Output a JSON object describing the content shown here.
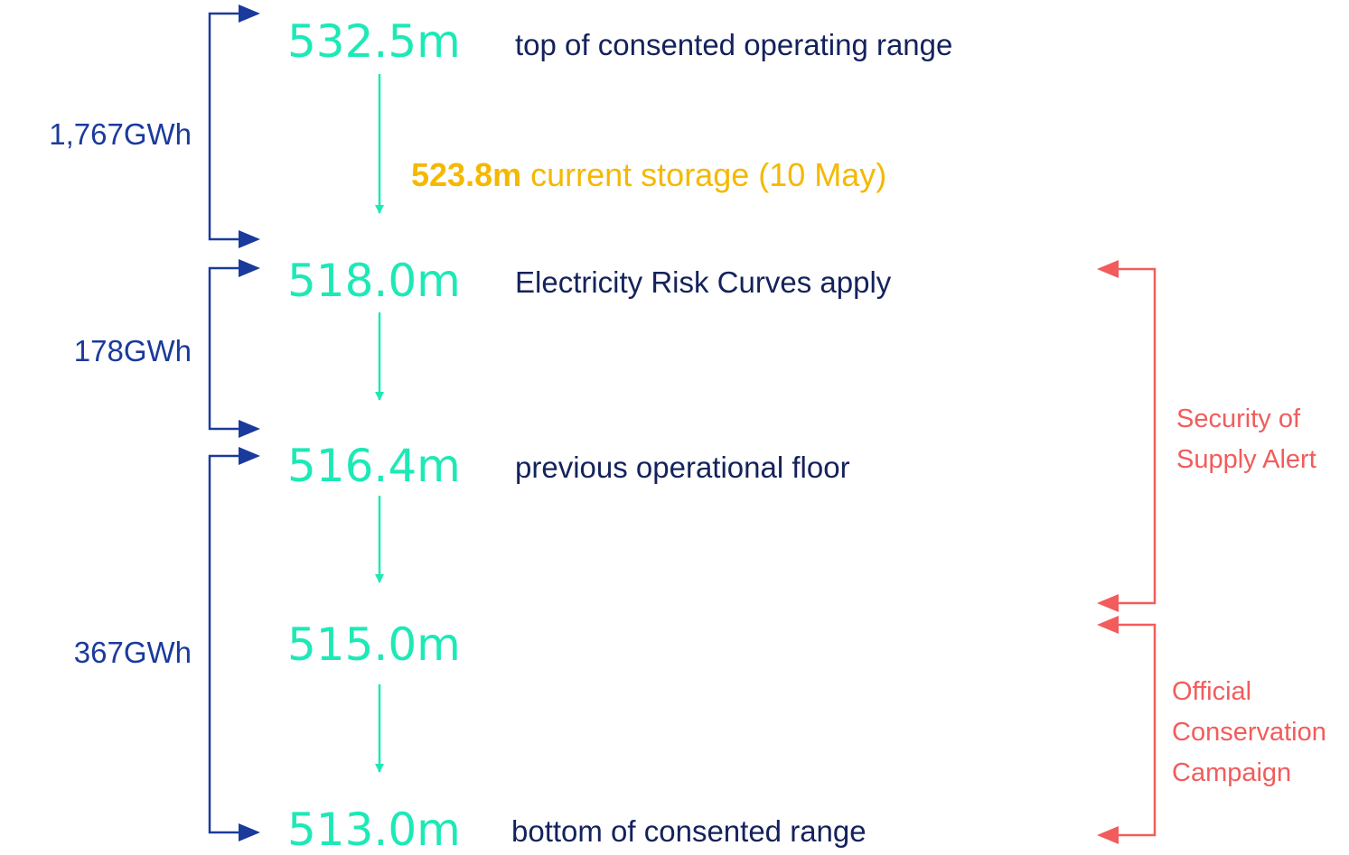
{
  "levels": [
    {
      "value": "532.5m",
      "label": "top of consented operating range"
    },
    {
      "value": "518.0m",
      "label": "Electricity Risk Curves apply"
    },
    {
      "value": "516.4m",
      "label": "previous operational floor"
    },
    {
      "value": "515.0m"
    },
    {
      "value": "513.0m",
      "label": "bottom of consented range"
    }
  ],
  "current": {
    "value": "523.8m",
    "label": "current storage (10 May)"
  },
  "energy": [
    "1,767GWh",
    "178GWh",
    "367GWh"
  ],
  "alerts": [
    {
      "lines": [
        "Security of",
        "Supply Alert"
      ]
    },
    {
      "lines": [
        "Official",
        "Conservation",
        "Campaign"
      ]
    }
  ]
}
